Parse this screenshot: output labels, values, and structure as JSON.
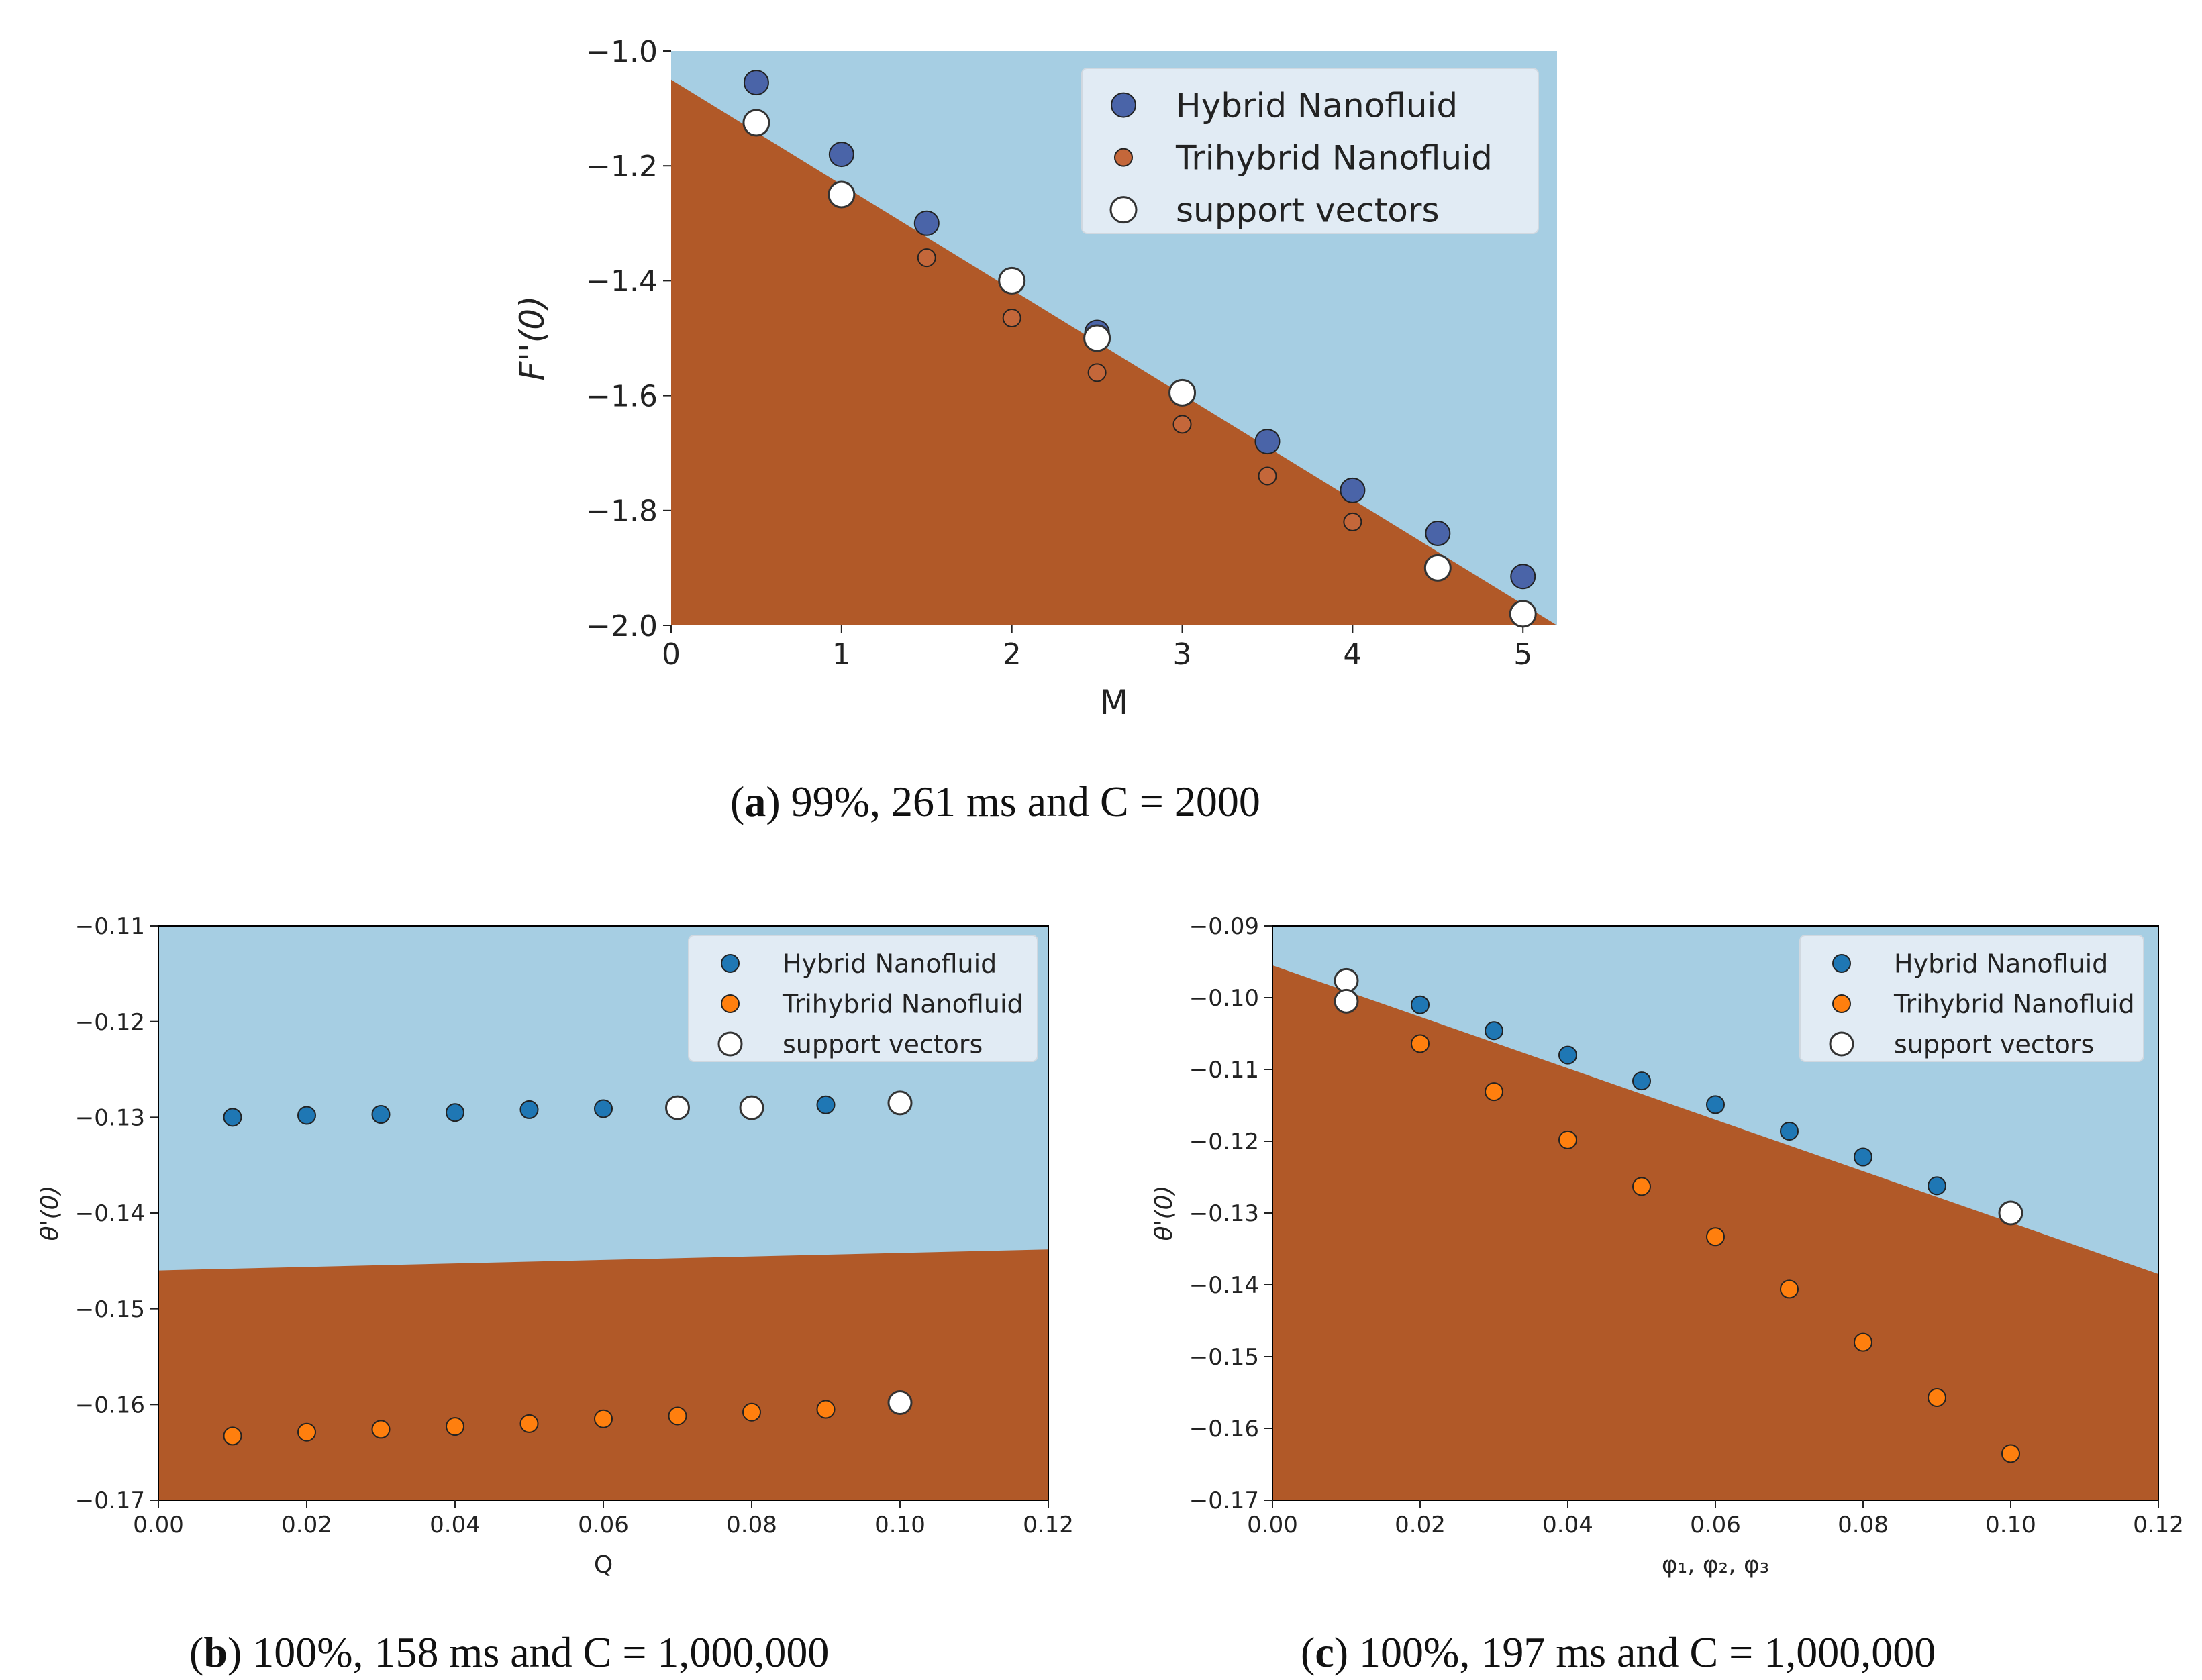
{
  "colors": {
    "region_hybrid": "#a6cee3",
    "region_trihybrid": "#b15928",
    "hybrid_point_a": "#4a64a8",
    "hybrid_point": "#1f77b4",
    "trihybrid_point_a": "#c4673a",
    "trihybrid_point": "#ff7f0e",
    "support_vector": "#ffffff",
    "legend_bg": "#e6eef5"
  },
  "chart_data": [
    {
      "id": "a",
      "type": "scatter",
      "title": "",
      "xlabel": "M",
      "ylabel": "F''(0)",
      "xlim": [
        0,
        5.2
      ],
      "ylim": [
        -2.0,
        -1.0
      ],
      "xticks": [
        0,
        1,
        2,
        3,
        4,
        5
      ],
      "xtick_labels": [
        "0",
        "1",
        "2",
        "3",
        "4",
        "5"
      ],
      "yticks": [
        -1.0,
        -1.2,
        -1.4,
        -1.6,
        -1.8,
        -2.0
      ],
      "ytick_labels": [
        "−1.0",
        "−1.2",
        "−1.4",
        "−1.6",
        "−1.8",
        "−2.0"
      ],
      "decision_boundary": [
        [
          0,
          -1.05
        ],
        [
          5.2,
          -2.0
        ]
      ],
      "legend": [
        "Hybrid Nanofluid",
        "Trihybrid Nanofluid",
        "support vectors"
      ],
      "series": [
        {
          "name": "Hybrid Nanofluid",
          "x": [
            0.5,
            1.0,
            1.5,
            2.5,
            3.5,
            4.0,
            4.5,
            5.0
          ],
          "y": [
            -1.055,
            -1.18,
            -1.3,
            -1.49,
            -1.68,
            -1.765,
            -1.84,
            -1.915
          ]
        },
        {
          "name": "Trihybrid Nanofluid",
          "x": [
            1.5,
            2.0,
            2.5,
            3.0,
            3.5,
            4.0
          ],
          "y": [
            -1.36,
            -1.465,
            -1.56,
            -1.65,
            -1.74,
            -1.82
          ]
        },
        {
          "name": "support vectors",
          "x": [
            0.5,
            1.0,
            2.0,
            2.5,
            3.0,
            4.5,
            5.0
          ],
          "y": [
            -1.125,
            -1.25,
            -1.4,
            -1.5,
            -1.595,
            -1.9,
            -1.98
          ]
        }
      ],
      "caption_tag": "a",
      "caption_text": "99%, 261 ms and C = 2000"
    },
    {
      "id": "b",
      "type": "scatter",
      "title": "",
      "xlabel": "Q",
      "ylabel": "θ'(0)",
      "xlim": [
        0,
        0.12
      ],
      "ylim": [
        -0.17,
        -0.11
      ],
      "xticks": [
        0,
        0.02,
        0.04,
        0.06,
        0.08,
        0.1,
        0.12
      ],
      "xtick_labels": [
        "0.00",
        "0.02",
        "0.04",
        "0.06",
        "0.08",
        "0.10",
        "0.12"
      ],
      "yticks": [
        -0.11,
        -0.12,
        -0.13,
        -0.14,
        -0.15,
        -0.16,
        -0.17
      ],
      "ytick_labels": [
        "−0.11",
        "−0.12",
        "−0.13",
        "−0.14",
        "−0.15",
        "−0.16",
        "−0.17"
      ],
      "decision_boundary": [
        [
          0,
          -0.146
        ],
        [
          0.12,
          -0.1438
        ]
      ],
      "legend": [
        "Hybrid Nanofluid",
        "Trihybrid Nanofluid",
        "support vectors"
      ],
      "series": [
        {
          "name": "Hybrid Nanofluid",
          "x": [
            0.01,
            0.02,
            0.03,
            0.04,
            0.05,
            0.06,
            0.09
          ],
          "y": [
            -0.13,
            -0.1298,
            -0.1297,
            -0.1295,
            -0.1292,
            -0.1291,
            -0.1287
          ]
        },
        {
          "name": "Trihybrid Nanofluid",
          "x": [
            0.01,
            0.02,
            0.03,
            0.04,
            0.05,
            0.06,
            0.07,
            0.08,
            0.09
          ],
          "y": [
            -0.1633,
            -0.1629,
            -0.1626,
            -0.1623,
            -0.162,
            -0.1615,
            -0.1612,
            -0.1608,
            -0.1605
          ]
        },
        {
          "name": "support vectors",
          "x": [
            0.07,
            0.08,
            0.1,
            0.1
          ],
          "y": [
            -0.129,
            -0.129,
            -0.1285,
            -0.1598
          ]
        }
      ],
      "caption_tag": "b",
      "caption_text": "100%, 158 ms and C = 1,000,000"
    },
    {
      "id": "c",
      "type": "scatter",
      "title": "",
      "xlabel": "φ₁, φ₂, φ₃",
      "ylabel": "θ'(0)",
      "xlim": [
        0,
        0.12
      ],
      "ylim": [
        -0.17,
        -0.09
      ],
      "xticks": [
        0,
        0.02,
        0.04,
        0.06,
        0.08,
        0.1,
        0.12
      ],
      "xtick_labels": [
        "0.00",
        "0.02",
        "0.04",
        "0.06",
        "0.08",
        "0.10",
        "0.12"
      ],
      "yticks": [
        -0.09,
        -0.1,
        -0.11,
        -0.12,
        -0.13,
        -0.14,
        -0.15,
        -0.16,
        -0.17
      ],
      "ytick_labels": [
        "−0.09",
        "−0.10",
        "−0.11",
        "−0.12",
        "−0.13",
        "−0.14",
        "−0.15",
        "−0.16",
        "−0.17"
      ],
      "decision_boundary": [
        [
          0,
          -0.0955
        ],
        [
          0.12,
          -0.1385
        ]
      ],
      "legend": [
        "Hybrid Nanofluid",
        "Trihybrid Nanofluid",
        "support vectors"
      ],
      "series": [
        {
          "name": "Hybrid Nanofluid",
          "x": [
            0.02,
            0.03,
            0.04,
            0.05,
            0.06,
            0.07,
            0.08,
            0.09
          ],
          "y": [
            -0.101,
            -0.1046,
            -0.108,
            -0.1116,
            -0.1149,
            -0.1186,
            -0.1222,
            -0.1262
          ]
        },
        {
          "name": "Trihybrid Nanofluid",
          "x": [
            0.02,
            0.03,
            0.04,
            0.05,
            0.06,
            0.07,
            0.08,
            0.09,
            0.1
          ],
          "y": [
            -0.1064,
            -0.1131,
            -0.1198,
            -0.1263,
            -0.1333,
            -0.1406,
            -0.148,
            -0.1557,
            -0.1635
          ]
        },
        {
          "name": "support vectors",
          "x": [
            0.01,
            0.01,
            0.1
          ],
          "y": [
            -0.0976,
            -0.1005,
            -0.13
          ]
        }
      ],
      "caption_tag": "c",
      "caption_text": "100%, 197 ms and C = 1,000,000"
    }
  ]
}
